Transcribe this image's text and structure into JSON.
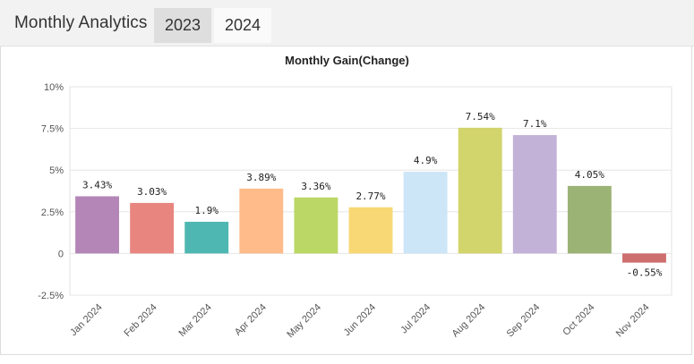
{
  "header": {
    "title": "Monthly Analytics",
    "tabs": [
      {
        "label": "2023",
        "active": false
      },
      {
        "label": "2024",
        "active": true
      }
    ]
  },
  "chart_data": {
    "type": "bar",
    "title": "Monthly Gain(Change)",
    "xlabel": "",
    "ylabel": "",
    "ylim": [
      -2.5,
      10
    ],
    "yticks": [
      -2.5,
      0,
      2.5,
      5,
      7.5,
      10
    ],
    "ytick_labels": [
      "-2.5%",
      "0",
      "2.5%",
      "5%",
      "7.5%",
      "10%"
    ],
    "grid": true,
    "categories": [
      "Jan 2024",
      "Feb 2024",
      "Mar 2024",
      "Apr 2024",
      "May 2024",
      "Jun 2024",
      "Jul 2024",
      "Aug 2024",
      "Sep 2024",
      "Oct 2024",
      "Nov 2024"
    ],
    "values": [
      3.43,
      3.03,
      1.9,
      3.89,
      3.36,
      2.77,
      4.9,
      7.54,
      7.1,
      4.05,
      -0.55
    ],
    "data_labels": [
      "3.43%",
      "3.03%",
      "1.9%",
      "3.89%",
      "3.36%",
      "2.77%",
      "4.9%",
      "7.54%",
      "7.1%",
      "4.05%",
      "-0.55%"
    ],
    "colors": [
      "#b486b8",
      "#e8857f",
      "#4fb7b2",
      "#ffbb8a",
      "#bbd765",
      "#f8d874",
      "#cce5f7",
      "#d2d46c",
      "#c3b2d8",
      "#9bb475",
      "#cf6e6e"
    ]
  }
}
